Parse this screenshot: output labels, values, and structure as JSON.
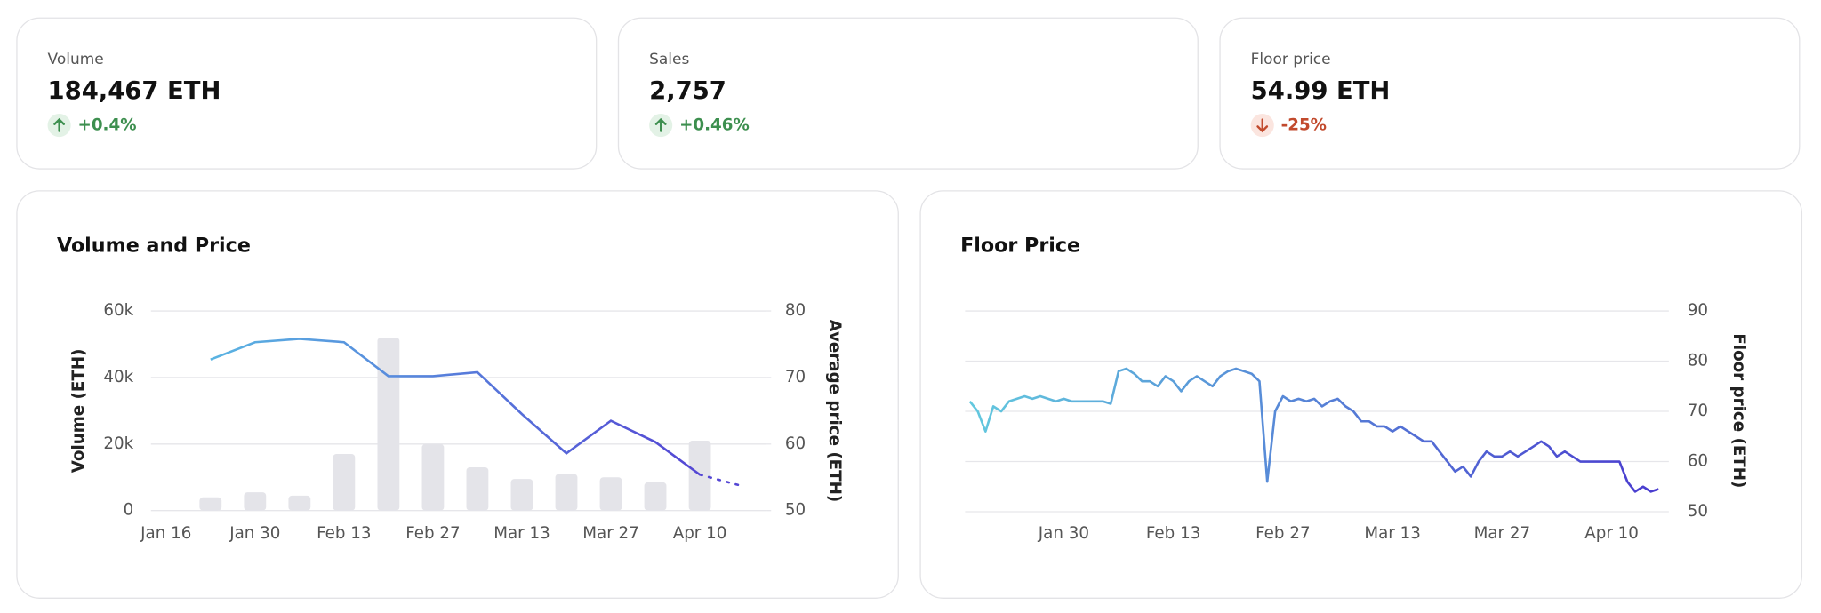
{
  "stats": [
    {
      "label": "Volume",
      "value": "184,467 ETH",
      "change": "+0.4%",
      "direction": "up"
    },
    {
      "label": "Sales",
      "value": "2,757",
      "change": "+0.46%",
      "direction": "up"
    },
    {
      "label": "Floor price",
      "value": "54.99 ETH",
      "change": "-25%",
      "direction": "down"
    }
  ],
  "chart_data": [
    {
      "type": "bar",
      "title": "Volume and Price",
      "categories": [
        "Jan 16",
        null,
        "Jan 30",
        null,
        "Feb 13",
        null,
        "Feb 27",
        null,
        "Mar 13",
        null,
        "Mar 27",
        null,
        "Apr 10",
        null
      ],
      "series": [
        {
          "type": "bar",
          "color": "#e4e4e9",
          "values": [
            null,
            4000,
            5500,
            4500,
            17000,
            52000,
            20000,
            13000,
            9500,
            11000,
            10000,
            8500,
            21000,
            null
          ]
        },
        {
          "type": "line",
          "axis": "y2",
          "colors": [
            "#5ab4e2",
            "#5446d4"
          ],
          "values": [
            null,
            72.7,
            75.3,
            75.8,
            75.3,
            70.2,
            70.2,
            70.8,
            64.5,
            58.6,
            63.5,
            60.3,
            55.4,
            53.6
          ]
        }
      ],
      "ylabel": "Volume (ETH)",
      "y2label": "Average price (ETH)",
      "ylim": [
        0,
        60000
      ],
      "yticks": [
        0,
        {
          "value": 20000,
          "label": "20k"
        },
        {
          "value": 40000,
          "label": "40k"
        },
        {
          "value": 60000,
          "label": "60k"
        }
      ],
      "y2lim": [
        50,
        80
      ],
      "y2ticks": [
        50,
        60,
        70,
        80
      ],
      "grid": true
    },
    {
      "type": "line",
      "title": "Floor Price",
      "categories": [
        null,
        null,
        null,
        null,
        null,
        null,
        null,
        null,
        null,
        null,
        null,
        null,
        "Jan 30",
        null,
        null,
        null,
        null,
        null,
        null,
        null,
        null,
        null,
        null,
        null,
        null,
        null,
        "Feb 13",
        null,
        null,
        null,
        null,
        null,
        null,
        null,
        null,
        null,
        null,
        null,
        null,
        null,
        "Feb 27",
        null,
        null,
        null,
        null,
        null,
        null,
        null,
        null,
        null,
        null,
        null,
        null,
        null,
        "Mar 13",
        null,
        null,
        null,
        null,
        null,
        null,
        null,
        null,
        null,
        null,
        null,
        null,
        null,
        "Mar 27",
        null,
        null,
        null,
        null,
        null,
        null,
        null,
        null,
        null,
        null,
        null,
        null,
        null,
        "Apr 10",
        null,
        null,
        null,
        null,
        null,
        null
      ],
      "series": [
        {
          "axis": "y2",
          "colors": [
            "#62c8de",
            "#4a3ccf"
          ],
          "values": [
            72,
            70,
            66,
            71,
            70,
            72,
            72.5,
            73,
            72.5,
            73,
            72.5,
            72,
            72.5,
            72,
            72,
            72,
            72,
            72,
            71.5,
            78,
            78.5,
            77.5,
            76,
            76,
            75,
            77,
            76,
            74,
            76,
            77,
            76,
            75,
            77,
            78,
            78.5,
            78,
            77.5,
            76,
            56,
            70,
            73,
            72,
            72.5,
            72,
            72.5,
            71,
            72,
            72.5,
            71,
            70,
            68,
            68,
            67,
            67,
            66,
            67,
            66,
            65,
            64,
            64,
            62,
            60,
            58,
            59,
            57,
            60,
            62,
            61,
            61,
            62,
            61,
            62,
            63,
            64,
            63,
            61,
            62,
            61,
            60,
            60,
            60,
            60,
            60,
            60,
            56,
            54,
            55,
            54,
            54.5
          ]
        }
      ],
      "y2label": "Floor price (ETH)",
      "y2lim": [
        50,
        90
      ],
      "y2ticks": [
        50,
        60,
        70,
        80,
        90
      ],
      "grid": true
    }
  ]
}
